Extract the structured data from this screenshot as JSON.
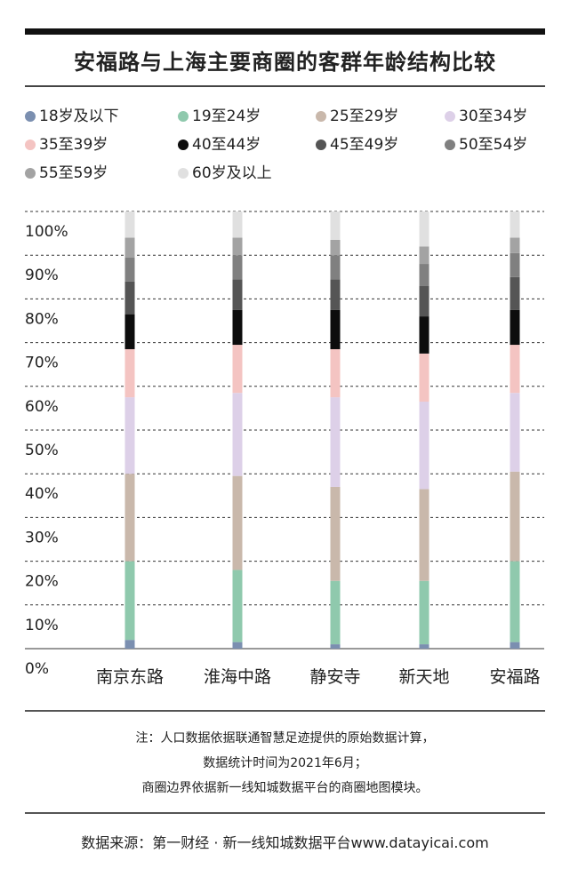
{
  "title": "安福路与上海主要商圈的客群年龄结构比较",
  "chart_data": {
    "type": "bar",
    "stacked": true,
    "categories": [
      "南京东路",
      "淮海中路",
      "静安寺",
      "新天地",
      "安福路"
    ],
    "y_ticks": [
      "0%",
      "10%",
      "20%",
      "30%",
      "40%",
      "50%",
      "60%",
      "70%",
      "80%",
      "90%",
      "100%"
    ],
    "ylim": [
      0,
      100
    ],
    "grid": true,
    "legend_position": "top",
    "series": [
      {
        "name": "18岁及以下",
        "color": "#7b8fb0",
        "values": [
          2,
          1.5,
          1,
          1,
          1.5
        ]
      },
      {
        "name": "19至24岁",
        "color": "#8fc9ad",
        "values": [
          18,
          16.5,
          14.5,
          14.5,
          18.5
        ]
      },
      {
        "name": "25至29岁",
        "color": "#c9b8ab",
        "values": [
          20,
          21.5,
          21.5,
          21,
          20.5
        ]
      },
      {
        "name": "30至34岁",
        "color": "#ddd0e8",
        "values": [
          17.5,
          19,
          20.5,
          20,
          18
        ]
      },
      {
        "name": "35至39岁",
        "color": "#f4c4c2",
        "values": [
          11,
          11,
          11,
          11,
          11
        ]
      },
      {
        "name": "40至44岁",
        "color": "#0d0d0d",
        "values": [
          8,
          8,
          9,
          8.5,
          8
        ]
      },
      {
        "name": "45至49岁",
        "color": "#555555",
        "values": [
          7.5,
          7,
          7,
          7,
          7.5
        ]
      },
      {
        "name": "50至54岁",
        "color": "#808080",
        "values": [
          5.5,
          5.5,
          5.5,
          5,
          5.5
        ]
      },
      {
        "name": "55至59岁",
        "color": "#a3a3a3",
        "values": [
          4.5,
          4,
          3.5,
          4,
          3.5
        ]
      },
      {
        "name": "60岁及以上",
        "color": "#e0e0e0",
        "values": [
          6,
          6,
          6.5,
          8,
          6
        ]
      }
    ]
  },
  "notes": {
    "line1": "注：人口数据依据联通智慧足迹提供的原始数据计算，",
    "line2": "数据统计时间为2021年6月；",
    "line3": "商圈边界依据新一线知城数据平台的商圈地图模块。"
  },
  "source": "数据来源：第一财经 · 新一线知城数据平台www.datayicai.com"
}
